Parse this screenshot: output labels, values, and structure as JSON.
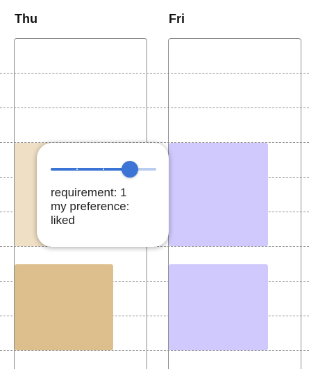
{
  "days": [
    {
      "label": "Thu"
    },
    {
      "label": "Fri"
    }
  ],
  "events": [
    {
      "day": "Thu",
      "color": "#efdfc4"
    },
    {
      "day": "Thu",
      "color": "#dcbf8c"
    },
    {
      "day": "Fri",
      "color": "#cfc9fd"
    },
    {
      "day": "Fri",
      "color": "#cfc9fd"
    }
  ],
  "popover": {
    "slider": {
      "value_fraction": 0.75,
      "step_count": 4,
      "accent_color": "#3b74d4",
      "rail_color": "#b9cdf0"
    },
    "requirement_label": "requirement: 1",
    "preference_label": "my preference:",
    "preference_value": "liked"
  },
  "colors": {
    "grid_line": "#8f8f8f",
    "column_border": "#8a8a8a"
  }
}
